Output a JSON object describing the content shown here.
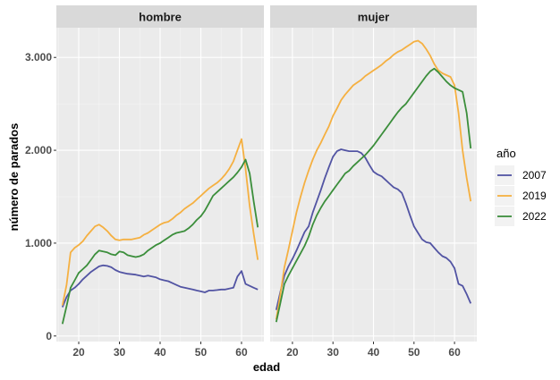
{
  "chart_data": {
    "type": "line",
    "xlabel": "edad",
    "ylabel": "número de parados",
    "xlim": [
      14.5,
      65.5
    ],
    "ylim": [
      -60,
      3320
    ],
    "x_ticks": [
      20,
      30,
      40,
      50,
      60
    ],
    "x_tick_labels": [
      "20",
      "30",
      "40",
      "50",
      "60"
    ],
    "y_ticks": [
      0,
      1000,
      2000,
      3000
    ],
    "y_tick_labels": [
      "0",
      "1.000",
      "2.000",
      "3.000"
    ],
    "grid": true,
    "legend": {
      "title": "año",
      "position": "right"
    },
    "panels": [
      {
        "label": "hombre",
        "series": [
          {
            "name": "2007",
            "color": "#5254a3",
            "x": [
              16,
              17,
              18,
              19,
              20,
              21,
              22,
              23,
              24,
              25,
              26,
              27,
              28,
              29,
              30,
              31,
              32,
              33,
              34,
              35,
              36,
              37,
              38,
              39,
              40,
              41,
              42,
              43,
              44,
              45,
              46,
              47,
              48,
              49,
              50,
              51,
              52,
              53,
              54,
              55,
              56,
              57,
              58,
              59,
              60,
              61,
              62,
              63,
              64
            ],
            "values": [
              310,
              420,
              490,
              520,
              560,
              610,
              650,
              690,
              720,
              750,
              760,
              755,
              740,
              710,
              690,
              680,
              670,
              665,
              660,
              650,
              640,
              650,
              640,
              630,
              610,
              600,
              590,
              570,
              550,
              530,
              520,
              510,
              500,
              490,
              480,
              470,
              490,
              490,
              495,
              500,
              500,
              510,
              520,
              640,
              700,
              560,
              540,
              520,
              500
            ]
          },
          {
            "name": "2019",
            "color": "#f5b041",
            "x": [
              16,
              17,
              18,
              19,
              20,
              21,
              22,
              23,
              24,
              25,
              26,
              27,
              28,
              29,
              30,
              31,
              32,
              33,
              34,
              35,
              36,
              37,
              38,
              39,
              40,
              41,
              42,
              43,
              44,
              45,
              46,
              47,
              48,
              49,
              50,
              51,
              52,
              53,
              54,
              55,
              56,
              57,
              58,
              59,
              60,
              61,
              62,
              63,
              64
            ],
            "values": [
              330,
              550,
              900,
              950,
              980,
              1020,
              1080,
              1130,
              1180,
              1200,
              1170,
              1130,
              1080,
              1040,
              1030,
              1040,
              1040,
              1040,
              1050,
              1060,
              1090,
              1110,
              1140,
              1170,
              1200,
              1220,
              1230,
              1260,
              1300,
              1330,
              1370,
              1400,
              1430,
              1470,
              1510,
              1550,
              1590,
              1620,
              1650,
              1690,
              1740,
              1800,
              1880,
              2000,
              2120,
              1800,
              1400,
              1100,
              820
            ]
          },
          {
            "name": "2022",
            "color": "#3b8e3b",
            "x": [
              16,
              17,
              18,
              19,
              20,
              21,
              22,
              23,
              24,
              25,
              26,
              27,
              28,
              29,
              30,
              31,
              32,
              33,
              34,
              35,
              36,
              37,
              38,
              39,
              40,
              41,
              42,
              43,
              44,
              45,
              46,
              47,
              48,
              49,
              50,
              51,
              52,
              53,
              54,
              55,
              56,
              57,
              58,
              59,
              60,
              61,
              62,
              63,
              64
            ],
            "values": [
              130,
              320,
              520,
              600,
              680,
              720,
              760,
              820,
              880,
              920,
              910,
              900,
              880,
              870,
              910,
              900,
              870,
              860,
              850,
              860,
              880,
              920,
              950,
              980,
              1000,
              1030,
              1060,
              1090,
              1110,
              1120,
              1130,
              1160,
              1200,
              1250,
              1290,
              1350,
              1430,
              1510,
              1550,
              1590,
              1630,
              1670,
              1710,
              1760,
              1820,
              1900,
              1750,
              1450,
              1170
            ]
          }
        ]
      },
      {
        "label": "mujer",
        "series": [
          {
            "name": "2007",
            "color": "#5254a3",
            "x": [
              16,
              17,
              18,
              19,
              20,
              21,
              22,
              23,
              24,
              25,
              26,
              27,
              28,
              29,
              30,
              31,
              32,
              33,
              34,
              35,
              36,
              37,
              38,
              39,
              40,
              41,
              42,
              43,
              44,
              45,
              46,
              47,
              48,
              49,
              50,
              51,
              52,
              53,
              54,
              55,
              56,
              57,
              58,
              59,
              60,
              61,
              62,
              63,
              64
            ],
            "values": [
              280,
              470,
              650,
              750,
              830,
              920,
              1020,
              1120,
              1180,
              1330,
              1450,
              1570,
              1700,
              1820,
              1930,
              1990,
              2010,
              2000,
              1990,
              1990,
              1990,
              1970,
              1920,
              1840,
              1770,
              1740,
              1720,
              1680,
              1640,
              1600,
              1580,
              1540,
              1430,
              1300,
              1180,
              1110,
              1040,
              1010,
              1000,
              950,
              900,
              860,
              840,
              800,
              730,
              560,
              540,
              450,
              350
            ]
          },
          {
            "name": "2019",
            "color": "#f5b041",
            "x": [
              16,
              17,
              18,
              19,
              20,
              21,
              22,
              23,
              24,
              25,
              26,
              27,
              28,
              29,
              30,
              31,
              32,
              33,
              34,
              35,
              36,
              37,
              38,
              39,
              40,
              41,
              42,
              43,
              44,
              45,
              46,
              47,
              48,
              49,
              50,
              51,
              52,
              53,
              54,
              55,
              56,
              57,
              58,
              59,
              60,
              61,
              62,
              63,
              64
            ],
            "values": [
              180,
              440,
              740,
              930,
              1130,
              1330,
              1500,
              1650,
              1780,
              1900,
              2000,
              2080,
              2170,
              2260,
              2370,
              2450,
              2540,
              2600,
              2650,
              2700,
              2730,
              2760,
              2800,
              2830,
              2860,
              2890,
              2920,
              2960,
              2990,
              3030,
              3060,
              3080,
              3110,
              3140,
              3170,
              3180,
              3150,
              3090,
              3020,
              2930,
              2860,
              2830,
              2810,
              2790,
              2700,
              2400,
              2000,
              1700,
              1450
            ]
          },
          {
            "name": "2022",
            "color": "#3b8e3b",
            "x": [
              16,
              17,
              18,
              19,
              20,
              21,
              22,
              23,
              24,
              25,
              26,
              27,
              28,
              29,
              30,
              31,
              32,
              33,
              34,
              35,
              36,
              37,
              38,
              39,
              40,
              41,
              42,
              43,
              44,
              45,
              46,
              47,
              48,
              49,
              50,
              51,
              52,
              53,
              54,
              55,
              56,
              57,
              58,
              59,
              60,
              61,
              62,
              63,
              64
            ],
            "values": [
              150,
              350,
              560,
              650,
              730,
              810,
              890,
              970,
              1070,
              1200,
              1300,
              1380,
              1450,
              1510,
              1570,
              1630,
              1690,
              1750,
              1780,
              1830,
              1870,
              1910,
              1950,
              2000,
              2050,
              2110,
              2170,
              2230,
              2290,
              2350,
              2410,
              2460,
              2500,
              2560,
              2620,
              2680,
              2740,
              2800,
              2850,
              2880,
              2840,
              2790,
              2740,
              2700,
              2670,
              2650,
              2630,
              2400,
              2020
            ]
          }
        ]
      }
    ]
  }
}
